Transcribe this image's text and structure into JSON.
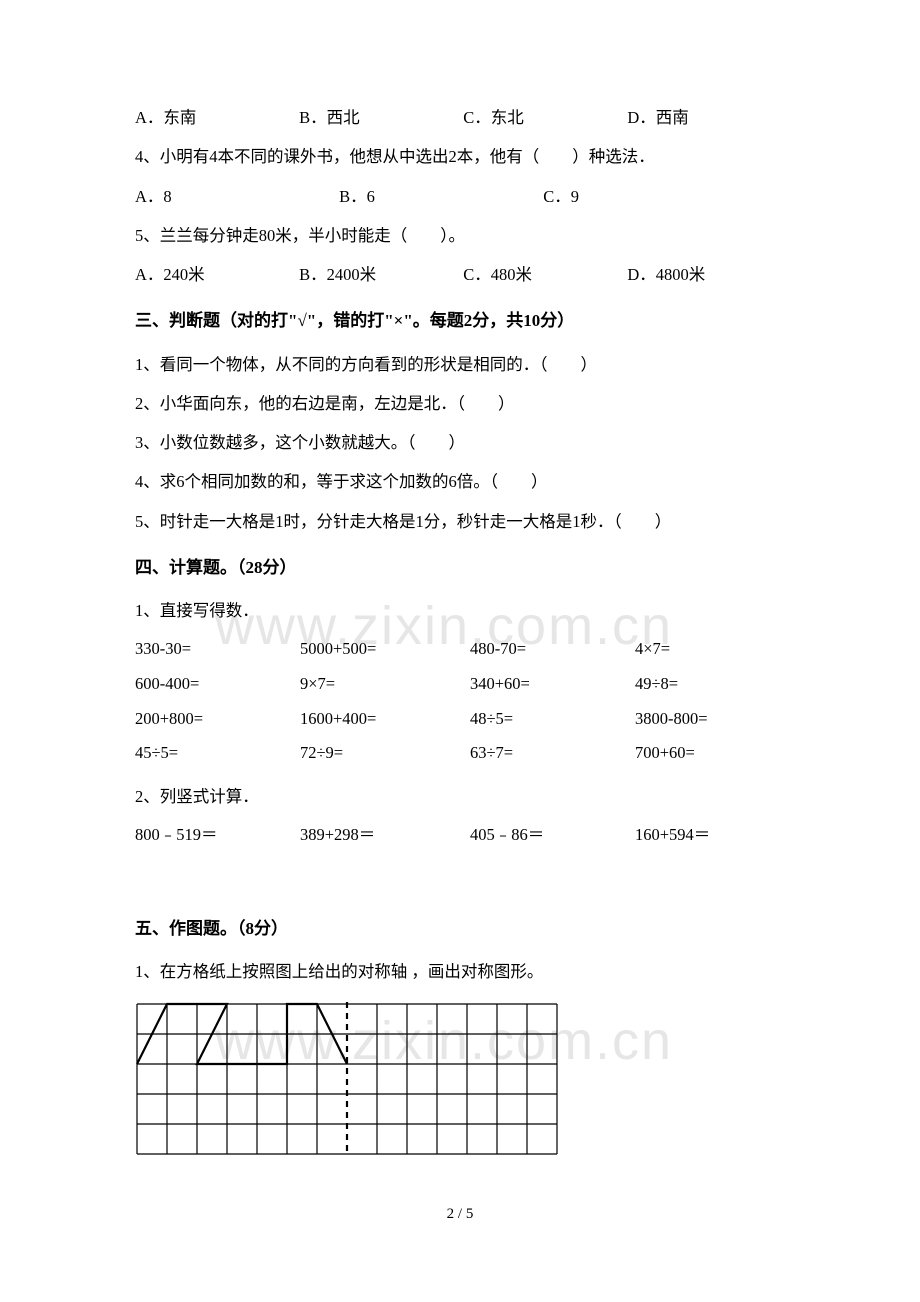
{
  "watermark1": "www.zixin.com.cn",
  "watermark2": "www.zixin.com.cn",
  "q3_options": {
    "a": "A．东南",
    "b": "B．西北",
    "c": "C．东北",
    "d": "D．西南"
  },
  "q4": "4、小明有4本不同的课外书，他想从中选出2本，他有（　　）种选法．",
  "q4_options": {
    "a": "A．8",
    "b": "B．6",
    "c": "C．9"
  },
  "q5": "5、兰兰每分钟走80米，半小时能走（　　）。",
  "q5_options": {
    "a": "A．240米",
    "b": "B．2400米",
    "c": "C．480米",
    "d": "D．4800米"
  },
  "section3_heading": "三、判断题（对的打\"√\"，错的打\"×\"。每题2分，共10分）",
  "s3q1": "1、看同一个物体，从不同的方向看到的形状是相同的．（　　）",
  "s3q2": "2、小华面向东，他的右边是南，左边是北．（　　）",
  "s3q3": "3、小数位数越多，这个小数就越大。（　　）",
  "s3q4": "4、求6个相同加数的和，等于求这个加数的6倍。（　　）",
  "s3q5": "5、时针走一大格是1时，分针走大格是1分，秒针走一大格是1秒．（　　）",
  "section4_heading": "四、计算题。（28分）",
  "s4q1": "1、直接写得数．",
  "calc_rows": [
    [
      "330-30=",
      "5000+500=",
      "480-70=",
      "4×7="
    ],
    [
      "600-400=",
      "9×7=",
      "340+60=",
      "49÷8="
    ],
    [
      "200+800=",
      "1600+400=",
      "48÷5=",
      "3800-800="
    ],
    [
      "45÷5=",
      "72÷9=",
      "63÷7=",
      "700+60="
    ]
  ],
  "s4q2": "2、列竖式计算．",
  "vert_rows": [
    [
      "800﹣519＝",
      "389+298＝",
      "405﹣86＝",
      "160+594＝"
    ]
  ],
  "section5_heading": "五、作图题。（8分）",
  "s5q1": "1、在方格纸上按照图上给出的对称轴 ，画出对称图形。",
  "page_number": "2 / 5",
  "grid": {
    "rows": 5,
    "cols": 14,
    "cell_size": 30,
    "stroke_color": "#000000",
    "stroke_width": 1.2,
    "shape_stroke_width": 2.2,
    "dash_pattern": "6,5"
  }
}
